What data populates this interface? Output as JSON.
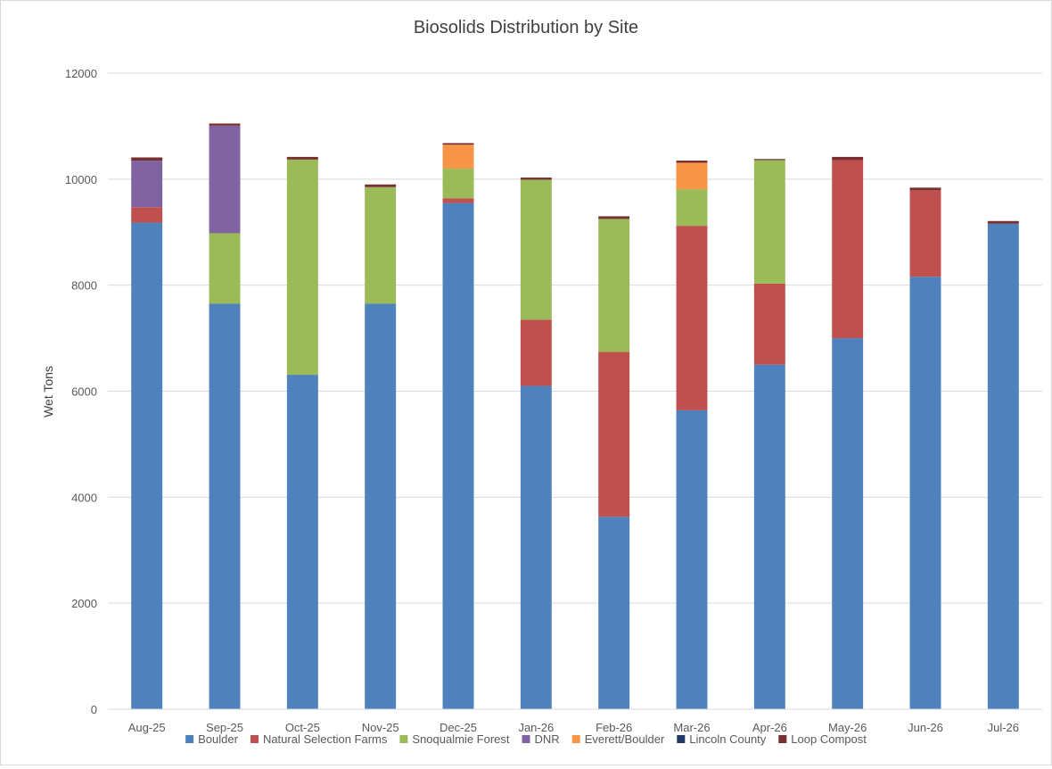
{
  "chart_data": {
    "type": "bar",
    "stacked": true,
    "title": "Biosolids Distribution by Site",
    "xlabel": "",
    "ylabel": "Wet Tons",
    "ylim": [
      0,
      12000
    ],
    "yticks": [
      0,
      2000,
      4000,
      6000,
      8000,
      10000,
      12000
    ],
    "grid": true,
    "legend": "bottom",
    "categories": [
      "Aug-25",
      "Sep-25",
      "Oct-25",
      "Nov-25",
      "Dec-25",
      "Jan-26",
      "Feb-26",
      "Mar-26",
      "Apr-26",
      "May-26",
      "Jun-26",
      "Jul-26"
    ],
    "series": [
      {
        "name": "Boulder",
        "color": "#4f81bd",
        "values": [
          9180,
          7650,
          6310,
          7650,
          9550,
          6100,
          3630,
          5640,
          6500,
          7000,
          8160,
          9160
        ]
      },
      {
        "name": "Natural Selection Farms",
        "color": "#c0504d",
        "values": [
          290,
          0,
          0,
          0,
          90,
          1250,
          3110,
          3480,
          1530,
          3360,
          1630,
          0
        ]
      },
      {
        "name": "Snoqualmie Forest",
        "color": "#9bbb59",
        "values": [
          0,
          1330,
          4060,
          2200,
          560,
          2640,
          2510,
          690,
          2330,
          0,
          0,
          0
        ]
      },
      {
        "name": "DNR",
        "color": "#8064a2",
        "values": [
          880,
          2030,
          0,
          0,
          0,
          0,
          0,
          0,
          0,
          0,
          0,
          0
        ]
      },
      {
        "name": "Everett/Boulder",
        "color": "#f79646",
        "values": [
          0,
          0,
          0,
          0,
          450,
          0,
          0,
          500,
          0,
          0,
          0,
          0
        ]
      },
      {
        "name": "Lincoln County",
        "color": "#1f3864",
        "values": [
          0,
          0,
          0,
          0,
          0,
          0,
          0,
          0,
          0,
          0,
          0,
          0
        ]
      },
      {
        "name": "Loop Compost",
        "color": "#772f2f",
        "values": [
          60,
          40,
          50,
          50,
          30,
          40,
          50,
          40,
          20,
          60,
          50,
          50
        ]
      }
    ]
  }
}
